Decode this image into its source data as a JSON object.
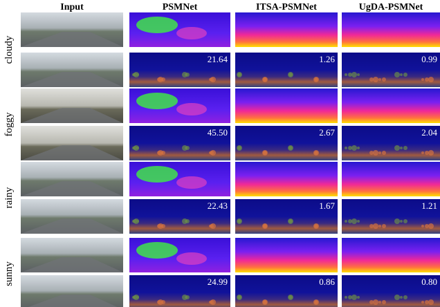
{
  "columns": [
    "Input",
    "PSMNet",
    "ITSA-PSMNet",
    "UgDA-PSMNet"
  ],
  "rows": [
    {
      "label": "cloudy",
      "errors": [
        "21.64",
        "1.26",
        "0.99"
      ]
    },
    {
      "label": "foggy",
      "errors": [
        "45.50",
        "2.67",
        "2.04"
      ]
    },
    {
      "label": "rainy",
      "errors": [
        "22.43",
        "1.67",
        "1.21"
      ]
    },
    {
      "label": "sunny",
      "errors": [
        "24.99",
        "0.86",
        "0.80"
      ]
    }
  ]
}
